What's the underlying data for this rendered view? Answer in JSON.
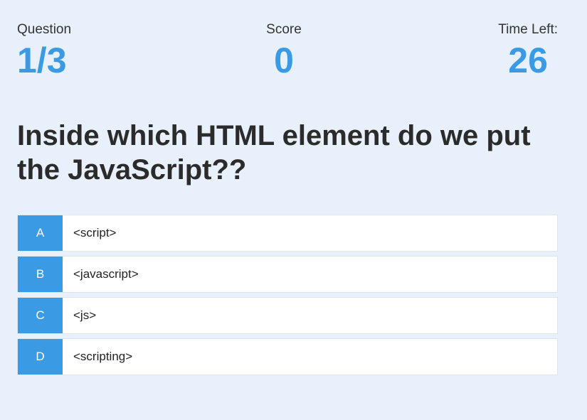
{
  "hud": {
    "question_label": "Question",
    "question_value": "1/3",
    "score_label": "Score",
    "score_value": "0",
    "time_label": "Time Left:",
    "time_value": "26"
  },
  "question": {
    "text": "Inside which HTML element do we put the JavaScript??"
  },
  "choices": [
    {
      "prefix": "A",
      "text": "<script>"
    },
    {
      "prefix": "B",
      "text": "<javascript>"
    },
    {
      "prefix": "C",
      "text": "<js>"
    },
    {
      "prefix": "D",
      "text": "<scripting>"
    }
  ],
  "colors": {
    "accent": "#3a9ae3",
    "background": "#e8f1fb",
    "text": "#333333"
  }
}
